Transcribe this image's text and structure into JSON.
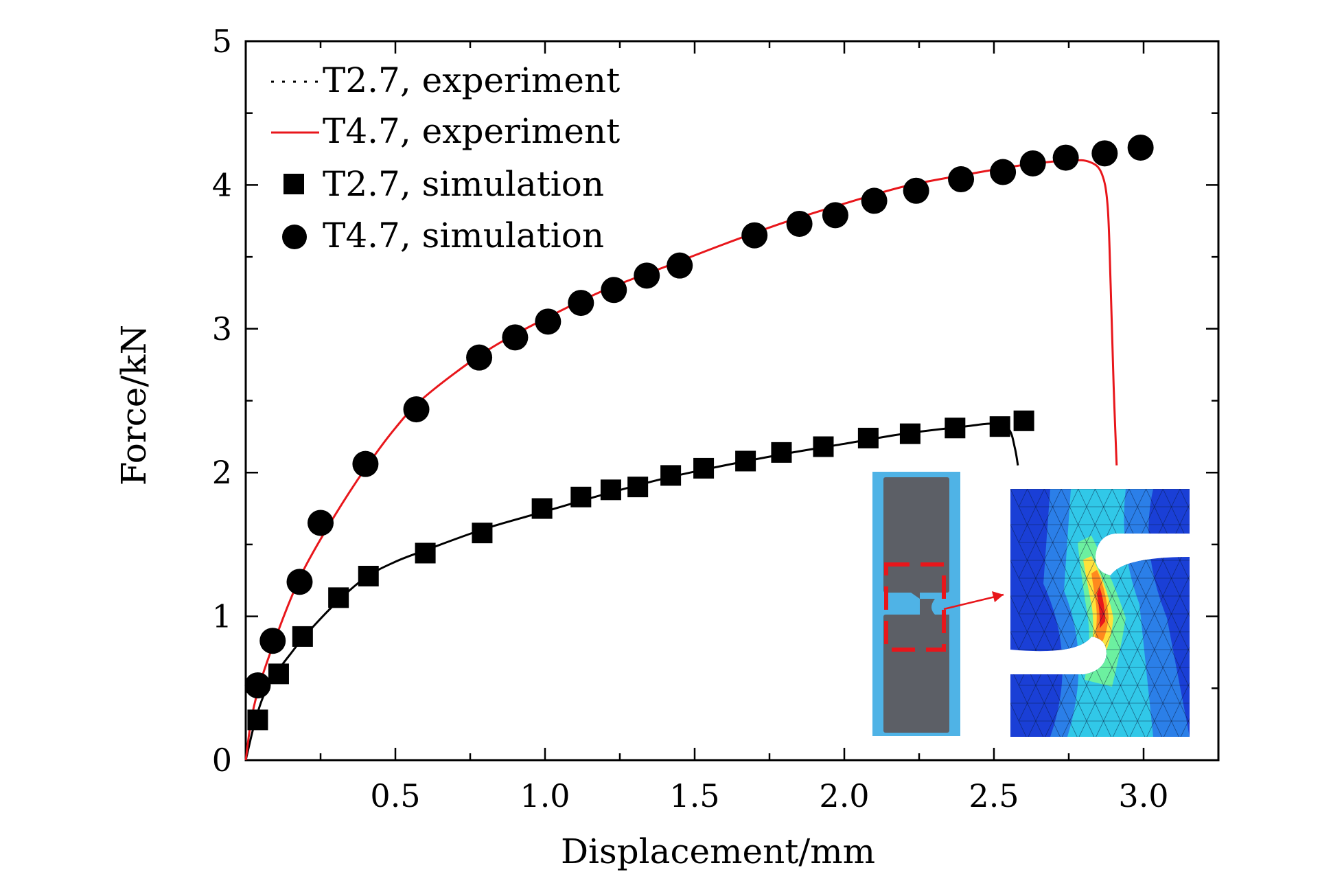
{
  "chart_data": {
    "type": "line",
    "xlabel": "Displacement/mm",
    "ylabel": "Force/kN",
    "xlim": [
      0,
      3.25
    ],
    "ylim": [
      0,
      5
    ],
    "xticks": [
      "0.5",
      "1.0",
      "1.5",
      "2.0",
      "2.5",
      "3.0"
    ],
    "xtick_values": [
      0.5,
      1.0,
      1.5,
      2.0,
      2.5,
      3.0
    ],
    "yticks": [
      "0",
      "1",
      "2",
      "3",
      "4",
      "5"
    ],
    "ytick_values": [
      0,
      1,
      2,
      3,
      4,
      5
    ],
    "grid": false,
    "legend_position": "top-left",
    "series": [
      {
        "name": "T2.7, experiment",
        "style": "dotted-line",
        "color": "#000000",
        "x": [
          0,
          0.03,
          0.06,
          0.1,
          0.15,
          0.2,
          0.3,
          0.4,
          0.5,
          0.6,
          0.8,
          1.0,
          1.2,
          1.4,
          1.6,
          1.8,
          2.0,
          2.2,
          2.4,
          2.5,
          2.55,
          2.57,
          2.58
        ],
        "y": [
          0,
          0.26,
          0.45,
          0.6,
          0.74,
          0.87,
          1.09,
          1.27,
          1.38,
          1.46,
          1.61,
          1.73,
          1.85,
          1.96,
          2.05,
          2.13,
          2.2,
          2.27,
          2.32,
          2.34,
          2.3,
          2.17,
          2.05
        ]
      },
      {
        "name": "T4.7, experiment",
        "style": "solid-line",
        "color": "#e8161b",
        "x": [
          0,
          0.02,
          0.05,
          0.1,
          0.15,
          0.2,
          0.3,
          0.4,
          0.5,
          0.6,
          0.8,
          1.0,
          1.2,
          1.4,
          1.6,
          1.8,
          2.0,
          2.2,
          2.4,
          2.6,
          2.75,
          2.82,
          2.86,
          2.88,
          2.89,
          2.9,
          2.91
        ],
        "y": [
          0,
          0.3,
          0.55,
          0.85,
          1.12,
          1.35,
          1.71,
          2.03,
          2.31,
          2.53,
          2.84,
          3.07,
          3.27,
          3.43,
          3.59,
          3.74,
          3.87,
          3.99,
          4.07,
          4.14,
          4.17,
          4.16,
          4.08,
          3.85,
          3.3,
          2.6,
          2.05
        ]
      },
      {
        "name": "T2.7, simulation",
        "style": "square-marker",
        "color": "#000000",
        "x": [
          0.04,
          0.11,
          0.19,
          0.31,
          0.41,
          0.6,
          0.79,
          0.99,
          1.12,
          1.22,
          1.31,
          1.42,
          1.53,
          1.67,
          1.79,
          1.93,
          2.08,
          2.22,
          2.37,
          2.52,
          2.6
        ],
        "y": [
          0.28,
          0.6,
          0.86,
          1.13,
          1.28,
          1.44,
          1.58,
          1.75,
          1.83,
          1.88,
          1.9,
          1.98,
          2.03,
          2.08,
          2.14,
          2.18,
          2.24,
          2.27,
          2.31,
          2.32,
          2.36
        ]
      },
      {
        "name": "T4.7, simulation",
        "style": "circle-marker",
        "color": "#000000",
        "x": [
          0.04,
          0.09,
          0.18,
          0.25,
          0.4,
          0.57,
          0.78,
          0.9,
          1.01,
          1.12,
          1.23,
          1.34,
          1.45,
          1.7,
          1.85,
          1.97,
          2.1,
          2.24,
          2.39,
          2.53,
          2.63,
          2.74,
          2.87,
          2.99
        ],
        "y": [
          0.52,
          0.83,
          1.24,
          1.65,
          2.06,
          2.44,
          2.8,
          2.94,
          3.05,
          3.18,
          3.27,
          3.37,
          3.44,
          3.65,
          3.73,
          3.79,
          3.89,
          3.96,
          4.04,
          4.09,
          4.15,
          4.19,
          4.22,
          4.26
        ]
      }
    ]
  },
  "inset": {
    "photo_color": "#4fb3e6",
    "specimen_color": "#5c5f66",
    "marker_color": "#e8161b",
    "mesh_colors": [
      "#1a3fd6",
      "#2b7fe8",
      "#31c8e8",
      "#6cf0a0",
      "#ffe23a",
      "#ff8a1e",
      "#e8161b"
    ]
  }
}
